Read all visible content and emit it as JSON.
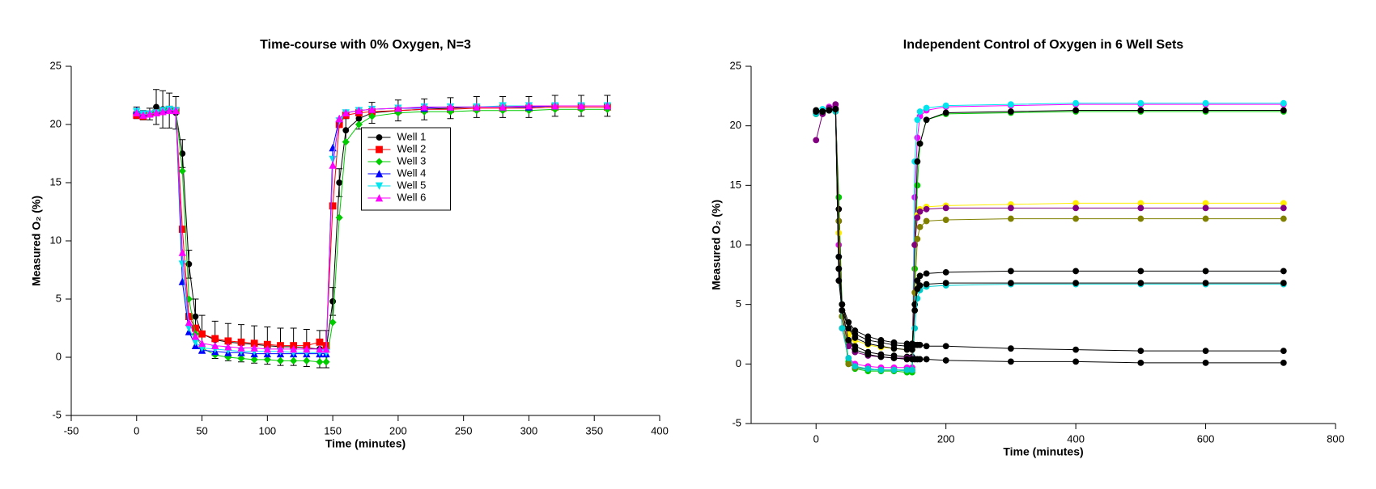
{
  "chart_data": [
    {
      "type": "line",
      "title": "Time-course with 0% Oxygen, N=3",
      "xlabel": "Time (minutes)",
      "ylabel": "Measured O₂ (%)",
      "xlim": [
        -50,
        400
      ],
      "xticks": [
        -50,
        0,
        50,
        100,
        150,
        200,
        250,
        300,
        350,
        400
      ],
      "ylim": [
        -5,
        25
      ],
      "yticks": [
        -5,
        0,
        5,
        10,
        15,
        20,
        25
      ],
      "legend": "upper center",
      "x": [
        0,
        5,
        10,
        15,
        20,
        25,
        30,
        35,
        40,
        45,
        50,
        60,
        70,
        80,
        90,
        100,
        110,
        120,
        130,
        140,
        145,
        150,
        155,
        160,
        170,
        180,
        200,
        220,
        240,
        260,
        280,
        300,
        320,
        340,
        360
      ],
      "series": [
        {
          "name": "Well 1",
          "color": "#000000",
          "marker": "circle",
          "values": [
            21,
            20.8,
            20.9,
            21.5,
            21.3,
            21.2,
            21,
            17.5,
            8,
            3.5,
            2,
            1.5,
            1.3,
            1.2,
            1.1,
            1,
            0.9,
            0.9,
            0.8,
            0.7,
            0.7,
            4.8,
            15,
            19.5,
            20.5,
            21,
            21.2,
            21.3,
            21.4,
            21.5,
            21.5,
            21.5,
            21.6,
            21.6,
            21.6
          ],
          "errors": [
            0.5,
            0.4,
            0.5,
            1.5,
            1.6,
            1.5,
            1.4,
            1.2,
            1.2,
            1.5,
            1.6,
            1.6,
            1.6,
            1.6,
            1.6,
            1.6,
            1.6,
            1.6,
            1.6,
            1.6,
            1.6,
            1.2,
            1.2,
            1,
            0.9,
            0.9,
            0.9,
            0.9,
            0.9,
            0.9,
            0.9,
            0.9,
            0.9,
            0.9,
            0.9
          ]
        },
        {
          "name": "Well 2",
          "color": "#ff0000",
          "marker": "square",
          "values": [
            20.8,
            20.7,
            20.9,
            21,
            21.2,
            21.3,
            21.2,
            11,
            3.5,
            2.5,
            2,
            1.6,
            1.4,
            1.3,
            1.2,
            1.1,
            1,
            1,
            1,
            1.3,
            1,
            13,
            20,
            20.8,
            21,
            21.1,
            21.2,
            21.3,
            21.3,
            21.4,
            21.4,
            21.4,
            21.5,
            21.5,
            21.5
          ]
        },
        {
          "name": "Well 3",
          "color": "#00cc00",
          "marker": "diamond",
          "values": [
            21,
            20.8,
            20.9,
            21,
            21.2,
            21.3,
            21.2,
            16,
            5,
            2,
            0.8,
            0.2,
            0,
            -0.1,
            -0.2,
            -0.2,
            -0.3,
            -0.3,
            -0.3,
            -0.4,
            -0.4,
            3,
            12,
            18.5,
            20,
            20.7,
            21,
            21.1,
            21.1,
            21.2,
            21.2,
            21.2,
            21.3,
            21.3,
            21.3
          ]
        },
        {
          "name": "Well 4",
          "color": "#0000ff",
          "marker": "triangle-up",
          "values": [
            21.2,
            20.9,
            20.9,
            21,
            21.2,
            21.3,
            21.2,
            6.5,
            2.2,
            1,
            0.6,
            0.5,
            0.4,
            0.4,
            0.3,
            0.3,
            0.3,
            0.3,
            0.3,
            0.3,
            0.3,
            18,
            20.5,
            21,
            21.2,
            21.3,
            21.4,
            21.4,
            21.5,
            21.5,
            21.5,
            21.5,
            21.6,
            21.6,
            21.6
          ]
        },
        {
          "name": "Well 5",
          "color": "#00e5ee",
          "marker": "triangle-down",
          "values": [
            21.1,
            20.9,
            20.9,
            21,
            21.2,
            21.3,
            21.2,
            8,
            2.5,
            1.3,
            0.8,
            0.7,
            0.6,
            0.5,
            0.5,
            0.5,
            0.5,
            0.4,
            0.4,
            0.4,
            0.4,
            17,
            20.3,
            21,
            21.2,
            21.3,
            21.4,
            21.5,
            21.5,
            21.5,
            21.6,
            21.6,
            21.6,
            21.6,
            21.6
          ]
        },
        {
          "name": "Well 6",
          "color": "#ff00ff",
          "marker": "triangle-up",
          "values": [
            21,
            20.8,
            20.9,
            21,
            21.1,
            21.2,
            21.2,
            9,
            3,
            1.8,
            1.2,
            1,
            0.9,
            0.8,
            0.8,
            0.7,
            0.7,
            0.7,
            0.7,
            0.7,
            0.7,
            16.5,
            20.5,
            21,
            21.2,
            21.3,
            21.4,
            21.5,
            21.5,
            21.5,
            21.5,
            21.6,
            21.6,
            21.6,
            21.6
          ]
        }
      ]
    },
    {
      "type": "line",
      "title": "Independent Control of Oxygen in 6 Well Sets",
      "xlabel": "Time (minutes)",
      "ylabel": "Measured O₂ (%)",
      "xlim": [
        -100,
        800
      ],
      "xticks": [
        0,
        200,
        400,
        600,
        800
      ],
      "ylim": [
        -5,
        25
      ],
      "yticks": [
        -5,
        0,
        5,
        10,
        15,
        20,
        25
      ],
      "x": [
        0,
        10,
        20,
        30,
        35,
        40,
        50,
        60,
        80,
        100,
        120,
        140,
        148,
        152,
        156,
        160,
        170,
        200,
        300,
        400,
        500,
        600,
        720
      ],
      "series": [
        {
          "color": "#ff00ff",
          "marker": "circle",
          "values": [
            21,
            21.3,
            21.6,
            21.5,
            10,
            3,
            0.5,
            0,
            -0.2,
            -0.3,
            -0.3,
            -0.3,
            -0.3,
            14,
            19,
            20.8,
            21.3,
            21.6,
            21.7,
            21.8,
            21.8,
            21.8,
            21.8
          ]
        },
        {
          "color": "#00e5ee",
          "marker": "circle",
          "values": [
            21.2,
            21.4,
            21.5,
            21.4,
            12,
            4,
            0,
            -0.3,
            -0.5,
            -0.5,
            -0.5,
            -0.6,
            -0.6,
            17,
            20.5,
            21.2,
            21.5,
            21.7,
            21.8,
            21.9,
            21.9,
            21.9,
            21.9
          ]
        },
        {
          "color": "#00cc00",
          "marker": "circle",
          "values": [
            21,
            21.2,
            21.4,
            21.3,
            14,
            5,
            0.2,
            -0.4,
            -0.6,
            -0.6,
            -0.6,
            -0.7,
            -0.7,
            8,
            15,
            18.5,
            20.5,
            21,
            21.1,
            21.2,
            21.2,
            21.2,
            21.2
          ]
        },
        {
          "color": "#000000",
          "marker": "circle",
          "values": [
            21.2,
            21.2,
            21.3,
            21.4,
            13,
            4.5,
            2,
            1.5,
            1,
            0.8,
            0.7,
            0.6,
            0.6,
            10,
            17,
            18.5,
            20.5,
            21.1,
            21.2,
            21.3,
            21.3,
            21.3,
            21.3
          ]
        },
        {
          "color": "#ffee00",
          "marker": "circle",
          "values": [
            21,
            21.2,
            21.4,
            21.3,
            11,
            4,
            2.5,
            2,
            1.6,
            1.4,
            1.3,
            1.2,
            1.2,
            10,
            12.5,
            13,
            13.2,
            13.3,
            13.4,
            13.5,
            13.5,
            13.5,
            13.5
          ]
        },
        {
          "color": "#800080",
          "marker": "circle",
          "values": [
            18.8,
            21,
            21.5,
            21.8,
            12,
            4,
            1.5,
            1,
            0.7,
            0.6,
            0.5,
            0.5,
            0.5,
            10,
            12.3,
            12.8,
            13,
            13.1,
            13.1,
            13.1,
            13.1,
            13.1,
            13.1
          ]
        },
        {
          "color": "#808000",
          "marker": "circle",
          "values": [
            21,
            21.2,
            21.3,
            21.2,
            12,
            4,
            0,
            -0.3,
            -0.4,
            -0.5,
            -0.5,
            -0.5,
            -0.5,
            6,
            10.5,
            11.5,
            12,
            12.1,
            12.2,
            12.2,
            12.2,
            12.2,
            12.2
          ]
        },
        {
          "color": "#000000",
          "marker": "circle",
          "values": [
            21.3,
            21.2,
            21.3,
            21.4,
            8,
            4.5,
            3,
            2.5,
            2,
            1.8,
            1.6,
            1.5,
            1.5,
            5,
            7,
            7.4,
            7.6,
            7.7,
            7.8,
            7.8,
            7.8,
            7.8,
            7.8
          ]
        },
        {
          "color": "#00cccc",
          "marker": "circle",
          "values": [
            21,
            21.2,
            21.3,
            21.2,
            9,
            3,
            0.5,
            -0.2,
            -0.4,
            -0.5,
            -0.5,
            -0.5,
            -0.5,
            3,
            5.5,
            6.2,
            6.5,
            6.6,
            6.7,
            6.7,
            6.7,
            6.7,
            6.7
          ]
        },
        {
          "color": "#000000",
          "marker": "circle",
          "values": [
            21.3,
            21.2,
            21.3,
            21.4,
            9,
            5,
            3,
            2.2,
            1.7,
            1.5,
            1.3,
            1.2,
            1.2,
            4.5,
            6.3,
            6.6,
            6.7,
            6.8,
            6.8,
            6.8,
            6.8,
            6.8,
            6.8
          ]
        },
        {
          "color": "#000000",
          "marker": "circle",
          "values": [
            21.2,
            21.2,
            21.3,
            21.4,
            8,
            5,
            3.5,
            2.8,
            2.3,
            2,
            1.8,
            1.7,
            1.7,
            1.6,
            1.6,
            1.6,
            1.5,
            1.5,
            1.3,
            1.2,
            1.1,
            1.1,
            1.1
          ]
        },
        {
          "color": "#000000",
          "marker": "circle",
          "values": [
            21.2,
            21.2,
            21.3,
            21.4,
            7,
            4.5,
            2,
            1.2,
            0.8,
            0.6,
            0.5,
            0.4,
            0.4,
            0.4,
            0.4,
            0.4,
            0.4,
            0.3,
            0.2,
            0.2,
            0.1,
            0.1,
            0.1
          ]
        }
      ]
    }
  ]
}
